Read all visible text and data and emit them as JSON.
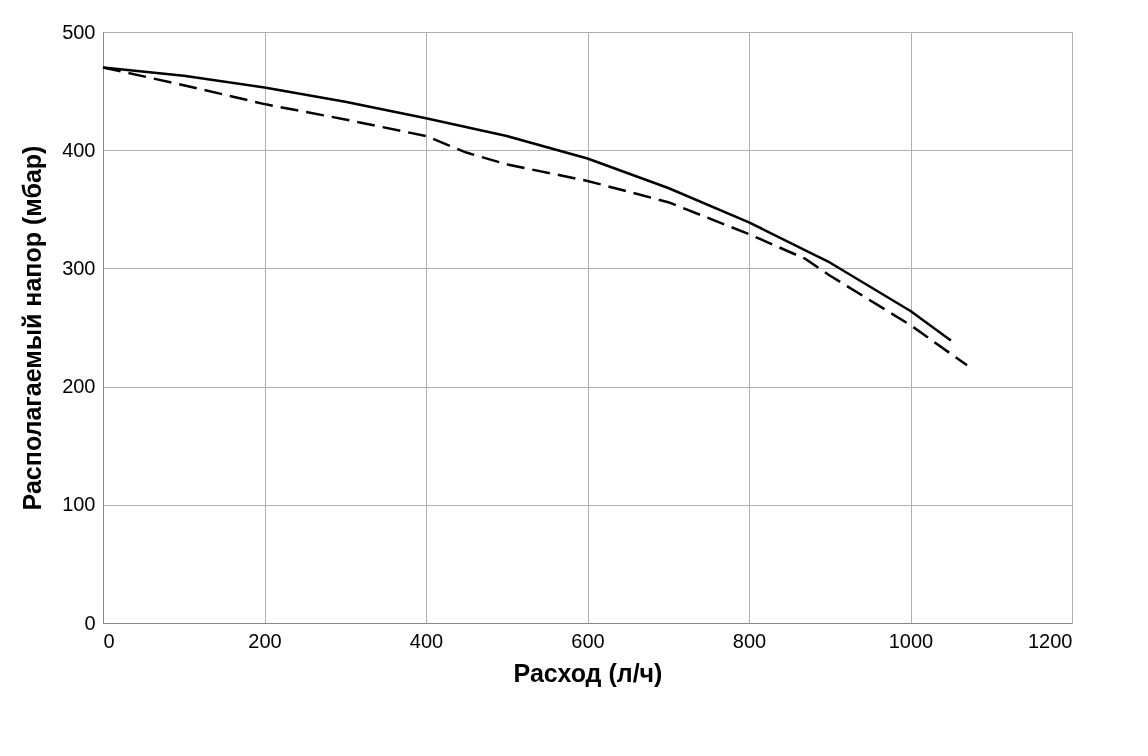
{
  "chart_data": {
    "type": "line",
    "xlabel": "Расход (л/ч)",
    "ylabel": "Располагаемый напор (мбар)",
    "xlim": [
      0,
      1200
    ],
    "xticks": [
      0,
      200,
      400,
      600,
      800,
      1000,
      1200
    ],
    "ylim": [
      0,
      500
    ],
    "yticks": [
      0,
      100,
      200,
      300,
      400,
      500
    ],
    "grid": true,
    "marker": "none",
    "series": [
      {
        "color": "#000000",
        "line_style": "solid",
        "x": [
          0,
          100,
          200,
          300,
          400,
          500,
          600,
          700,
          800,
          900,
          1000,
          1050
        ],
        "values": [
          470,
          463,
          453,
          441,
          427,
          412,
          393,
          368,
          339,
          305,
          264,
          239
        ]
      },
      {
        "color": "#000000",
        "line_style": "dashed",
        "x": [
          0,
          100,
          200,
          300,
          400,
          450,
          500,
          600,
          700,
          800,
          870,
          900,
          1000,
          1070
        ],
        "values": [
          470,
          455,
          439,
          426,
          412,
          398,
          388,
          374,
          356,
          329,
          308,
          294,
          252,
          218
        ]
      }
    ]
  }
}
